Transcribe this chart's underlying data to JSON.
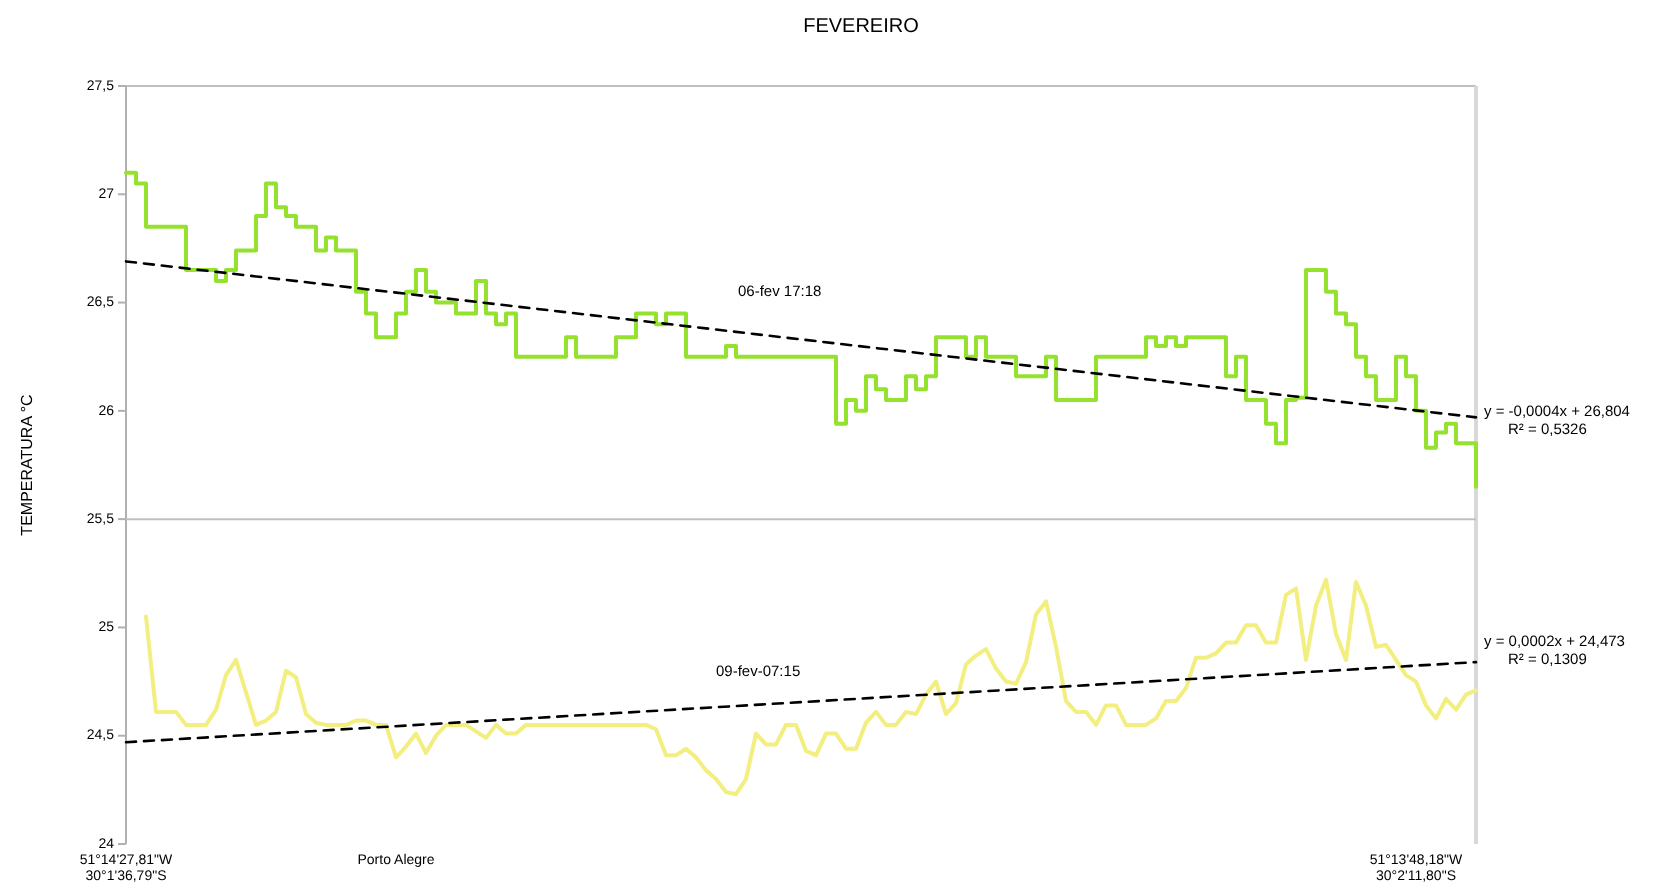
{
  "chart_data": {
    "type": "line",
    "title": "FEVEREIRO",
    "ylabel": "TEMPERATURA °C",
    "categories": [
      "51°14'27,81\"W\n30°1'36,79\"S",
      null,
      null,
      null,
      null,
      null,
      null,
      null,
      null,
      null,
      null,
      null,
      null,
      null,
      null,
      null,
      null,
      null,
      null,
      null,
      null,
      null,
      null,
      null,
      null,
      null,
      null,
      "Porto Alegre",
      null,
      null,
      null,
      null,
      null,
      null,
      null,
      null,
      null,
      null,
      null,
      null,
      null,
      null,
      null,
      null,
      null,
      null,
      null,
      null,
      null,
      null,
      null,
      null,
      null,
      null,
      null,
      null,
      null,
      null,
      null,
      null,
      null,
      null,
      null,
      null,
      null,
      null,
      null,
      null,
      null,
      null,
      null,
      null,
      null,
      null,
      null,
      null,
      null,
      null,
      null,
      null,
      null,
      null,
      null,
      null,
      null,
      null,
      null,
      null,
      null,
      null,
      null,
      null,
      null,
      null,
      null,
      null,
      null,
      null,
      null,
      null,
      null,
      null,
      null,
      null,
      null,
      null,
      null,
      null,
      null,
      null,
      null,
      null,
      null,
      null,
      null,
      null,
      null,
      null,
      null,
      null,
      null,
      null,
      null,
      null,
      null,
      null,
      null,
      null,
      null,
      "51°13'48,18\"W\n30°2'11,80\"S",
      null,
      null,
      null,
      null,
      null,
      null
    ],
    "ylim": [
      24,
      27.5
    ],
    "yticks": [
      {
        "value": 24,
        "label": "24"
      },
      {
        "value": 24.5,
        "label": "24,5"
      },
      {
        "value": 25,
        "label": "25"
      },
      {
        "value": 25.5,
        "label": "25,5"
      },
      {
        "value": 26,
        "label": "26"
      },
      {
        "value": 26.5,
        "label": "26,5"
      },
      {
        "value": 27,
        "label": "27"
      },
      {
        "value": 27.5,
        "label": "27,5"
      }
    ],
    "grid": false,
    "legend": false,
    "marker": "none",
    "ref_lines": [
      {
        "axis": "y",
        "value": 25.5,
        "color": "#c0c0c0"
      }
    ],
    "series": [
      {
        "type": "step",
        "color": "#94e22e",
        "values": [
          27.1,
          27.05,
          26.85,
          26.85,
          26.85,
          26.85,
          26.65,
          26.65,
          26.65,
          26.6,
          26.65,
          26.74,
          26.74,
          26.9,
          27.05,
          26.94,
          26.9,
          26.85,
          26.85,
          26.74,
          26.8,
          26.74,
          26.74,
          26.55,
          26.45,
          26.34,
          26.34,
          26.45,
          26.55,
          26.65,
          26.55,
          26.5,
          26.5,
          26.45,
          26.45,
          26.6,
          26.45,
          26.4,
          26.45,
          26.25,
          26.25,
          26.25,
          26.25,
          26.25,
          26.34,
          26.25,
          26.25,
          26.25,
          26.25,
          26.34,
          26.34,
          26.45,
          26.45,
          26.4,
          26.45,
          26.45,
          26.25,
          26.25,
          26.25,
          26.25,
          26.3,
          26.25,
          26.25,
          26.25,
          26.25,
          26.25,
          26.25,
          26.25,
          26.25,
          26.25,
          26.25,
          25.94,
          26.05,
          26.0,
          26.16,
          26.1,
          26.05,
          26.05,
          26.16,
          26.1,
          26.16,
          26.34,
          26.34,
          26.34,
          26.25,
          26.34,
          26.25,
          26.25,
          26.25,
          26.16,
          26.16,
          26.16,
          26.25,
          26.05,
          26.05,
          26.05,
          26.05,
          26.25,
          26.25,
          26.25,
          26.25,
          26.25,
          26.34,
          26.3,
          26.34,
          26.3,
          26.34,
          26.34,
          26.34,
          26.34,
          26.16,
          26.25,
          26.05,
          26.05,
          25.94,
          25.85,
          26.05,
          26.06,
          26.65,
          26.65,
          26.55,
          26.45,
          26.4,
          26.25,
          26.16,
          26.05,
          26.05,
          26.25,
          26.16,
          26.0,
          25.83,
          25.9,
          25.94,
          25.85,
          25.85,
          25.65
        ]
      },
      {
        "color": "#f3ee80",
        "values": [
          null,
          null,
          25.05,
          24.61,
          24.61,
          24.61,
          24.55,
          24.55,
          24.55,
          24.62,
          24.78,
          24.85,
          24.7,
          24.55,
          24.57,
          24.61,
          24.8,
          24.77,
          24.6,
          24.56,
          24.55,
          24.55,
          24.55,
          24.57,
          24.57,
          24.55,
          24.55,
          24.4,
          24.45,
          24.51,
          24.42,
          24.5,
          24.55,
          24.55,
          24.55,
          24.52,
          24.49,
          24.55,
          24.51,
          24.51,
          24.55,
          24.55,
          24.55,
          24.55,
          24.55,
          24.55,
          24.55,
          24.55,
          24.55,
          24.55,
          24.55,
          24.55,
          24.55,
          24.53,
          24.41,
          24.41,
          24.44,
          24.4,
          24.34,
          24.3,
          24.24,
          24.23,
          24.3,
          24.51,
          24.46,
          24.46,
          24.55,
          24.55,
          24.43,
          24.41,
          24.51,
          24.51,
          24.44,
          24.44,
          24.56,
          24.61,
          24.55,
          24.55,
          24.61,
          24.6,
          24.69,
          24.75,
          24.6,
          24.65,
          24.83,
          24.87,
          24.9,
          24.81,
          24.75,
          24.74,
          24.84,
          25.06,
          25.12,
          24.91,
          24.66,
          24.61,
          24.61,
          24.55,
          24.64,
          24.64,
          24.55,
          24.55,
          24.55,
          24.58,
          24.66,
          24.66,
          24.72,
          24.86,
          24.86,
          24.88,
          24.93,
          24.93,
          25.01,
          25.01,
          24.93,
          24.93,
          25.15,
          25.18,
          24.85,
          25.1,
          25.22,
          24.97,
          24.85,
          25.21,
          25.1,
          24.91,
          24.92,
          24.85,
          24.78,
          24.75,
          24.64,
          24.58,
          24.67,
          24.62,
          24.69,
          24.71
        ]
      },
      {
        "color": "#000000",
        "line_style": "dashed",
        "values": [
          26.69,
          null,
          null,
          null,
          null,
          null,
          null,
          null,
          null,
          null,
          null,
          null,
          null,
          null,
          null,
          null,
          null,
          null,
          null,
          null,
          null,
          null,
          null,
          null,
          null,
          null,
          null,
          null,
          null,
          null,
          null,
          null,
          null,
          null,
          null,
          null,
          null,
          null,
          null,
          null,
          null,
          null,
          null,
          null,
          null,
          null,
          null,
          null,
          null,
          null,
          null,
          null,
          null,
          null,
          null,
          null,
          null,
          null,
          null,
          null,
          null,
          null,
          null,
          null,
          null,
          null,
          null,
          null,
          null,
          null,
          null,
          null,
          null,
          null,
          null,
          null,
          null,
          null,
          null,
          null,
          null,
          null,
          null,
          null,
          null,
          null,
          null,
          null,
          null,
          null,
          null,
          null,
          null,
          null,
          null,
          null,
          null,
          null,
          null,
          null,
          null,
          null,
          null,
          null,
          null,
          null,
          null,
          null,
          null,
          null,
          null,
          null,
          null,
          null,
          null,
          null,
          null,
          null,
          null,
          null,
          null,
          null,
          null,
          null,
          null,
          null,
          null,
          null,
          null,
          null,
          null,
          null,
          null,
          null,
          null,
          25.97
        ]
      },
      {
        "color": "#000000",
        "line_style": "dashed",
        "values": [
          24.47,
          null,
          null,
          null,
          null,
          null,
          null,
          null,
          null,
          null,
          null,
          null,
          null,
          null,
          null,
          null,
          null,
          null,
          null,
          null,
          null,
          null,
          null,
          null,
          null,
          null,
          null,
          null,
          null,
          null,
          null,
          null,
          null,
          null,
          null,
          null,
          null,
          null,
          null,
          null,
          null,
          null,
          null,
          null,
          null,
          null,
          null,
          null,
          null,
          null,
          null,
          null,
          null,
          null,
          null,
          null,
          null,
          null,
          null,
          null,
          null,
          null,
          null,
          null,
          null,
          null,
          null,
          null,
          null,
          null,
          null,
          null,
          null,
          null,
          null,
          null,
          null,
          null,
          null,
          null,
          null,
          null,
          null,
          null,
          null,
          null,
          null,
          null,
          null,
          null,
          null,
          null,
          null,
          null,
          null,
          null,
          null,
          null,
          null,
          null,
          null,
          null,
          null,
          null,
          null,
          null,
          null,
          null,
          null,
          null,
          null,
          null,
          null,
          null,
          null,
          null,
          null,
          null,
          null,
          null,
          null,
          null,
          null,
          null,
          null,
          null,
          null,
          null,
          null,
          null,
          null,
          null,
          null,
          null,
          null,
          24.84
        ]
      }
    ],
    "annotations": [
      "06-fev 17:18",
      "09-fev-07:15",
      "y = -0,0004x + 26,804",
      "R² = 0,5326",
      "y = 0,0002x + 24,473",
      "R² = 0,1309"
    ]
  }
}
